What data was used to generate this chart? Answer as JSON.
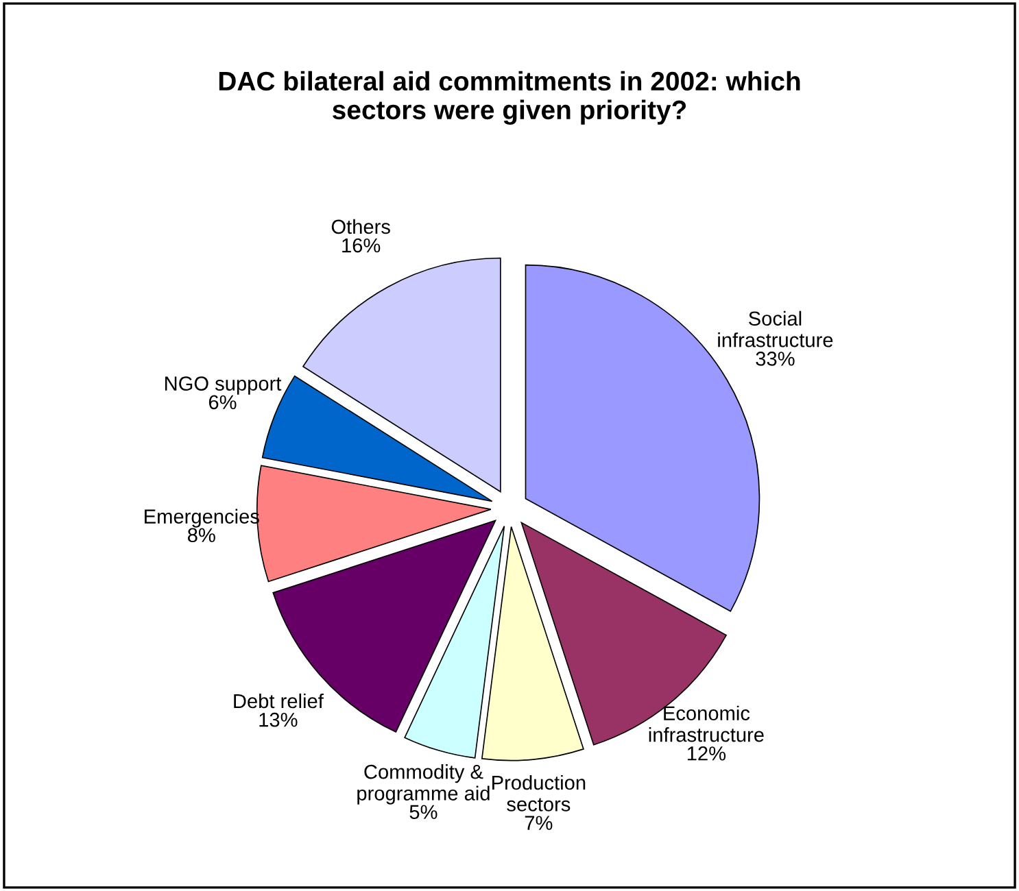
{
  "chart_data": {
    "type": "pie",
    "title": "DAC bilateral aid commitments in 2002: which\nsectors were given priority?",
    "categories": [
      "Social\ninfrastructure",
      "Economic\ninfrastructure",
      "Production\nsectors",
      "Commodity &\nprogramme aid",
      "Debt relief",
      "Emergencies",
      "NGO support",
      "Others"
    ],
    "values": [
      33,
      12,
      7,
      5,
      13,
      8,
      6,
      16
    ],
    "colors": [
      "#9999ff",
      "#993366",
      "#ffffcc",
      "#ccffff",
      "#660066",
      "#ff8080",
      "#0066cc",
      "#ccccff"
    ],
    "value_labels": [
      "33%",
      "12%",
      "7%",
      "5%",
      "13%",
      "8%",
      "6%",
      "16%"
    ],
    "legend": false
  }
}
